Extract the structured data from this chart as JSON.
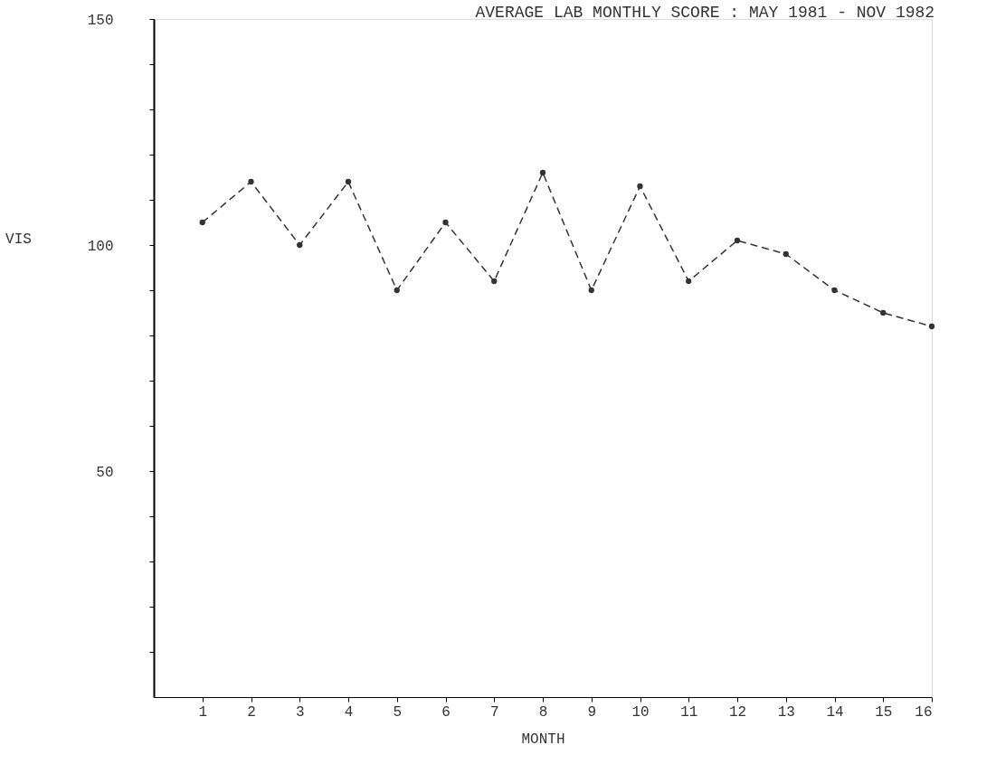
{
  "chart_data": {
    "type": "line",
    "title": "AVERAGE LAB MONTHLY SCORE : MAY 1981 - NOV 1982",
    "xlabel": "MONTH",
    "ylabel": "VIS",
    "x": [
      1,
      2,
      3,
      4,
      5,
      6,
      7,
      8,
      9,
      10,
      11,
      12,
      13,
      14,
      15,
      16
    ],
    "series": [
      {
        "color": "#333333",
        "values": [
          105,
          114,
          100,
          114,
          90,
          105,
          92,
          116,
          90,
          113,
          92,
          101,
          98,
          90,
          85,
          82
        ]
      }
    ],
    "xlim": [
      0,
      16
    ],
    "xticks": [
      1,
      2,
      3,
      4,
      5,
      6,
      7,
      8,
      9,
      10,
      11,
      12,
      13,
      14,
      15,
      16
    ],
    "ylim": [
      0,
      150
    ],
    "yticks": [
      {
        "value": 10,
        "label": null
      },
      {
        "value": 20,
        "label": null
      },
      {
        "value": 30,
        "label": null
      },
      {
        "value": 40,
        "label": null
      },
      50,
      {
        "value": 60,
        "label": null
      },
      {
        "value": 70,
        "label": null
      },
      {
        "value": 80,
        "label": null
      },
      {
        "value": 90,
        "label": null
      },
      100,
      {
        "value": 110,
        "label": null
      },
      {
        "value": 120,
        "label": null
      },
      {
        "value": 130,
        "label": null
      },
      {
        "value": 140,
        "label": null
      },
      150
    ],
    "marker": "circle",
    "line_style": "dashed",
    "grid": false,
    "legend": false
  }
}
